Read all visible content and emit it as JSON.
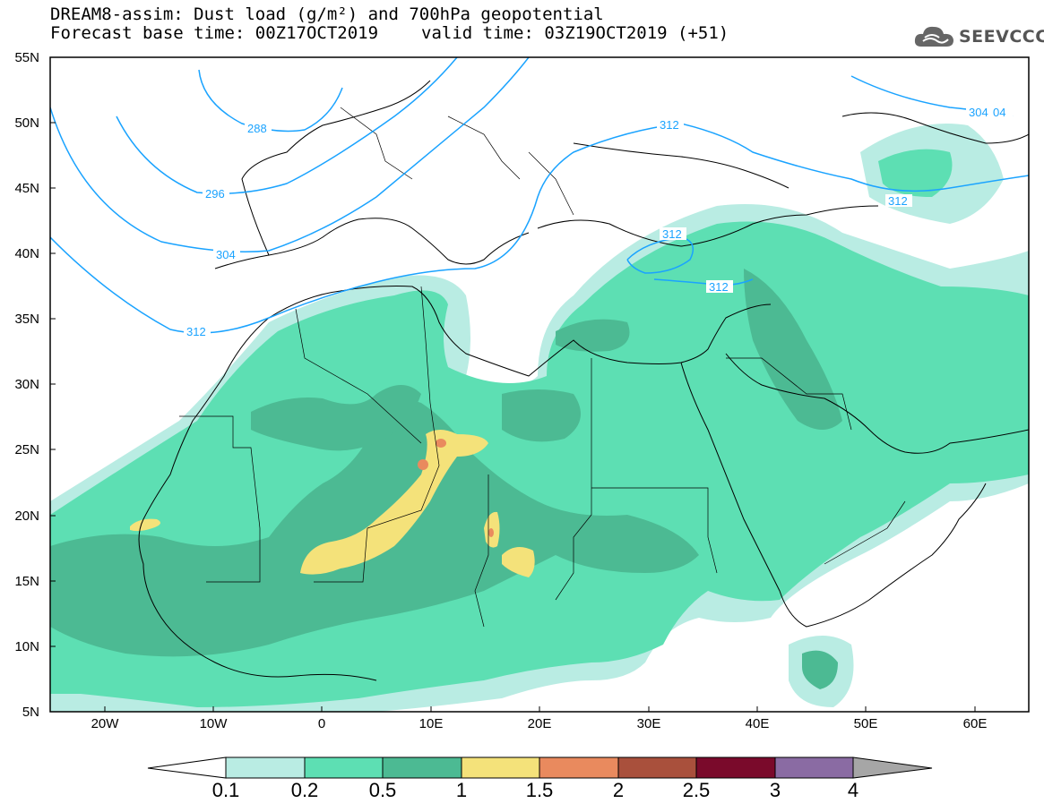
{
  "header": {
    "line1": "DREAM8-assim: Dust load (g/m²) and 700hPa geopotential",
    "base_time": "Forecast base time: 00Z17OCT2019",
    "valid_time": "valid time: 03Z19OCT2019 (+51)"
  },
  "logo": {
    "text": "SEEVCCC",
    "icon": "cloud-logo-icon"
  },
  "map": {
    "lat_labels": [
      "55N",
      "50N",
      "45N",
      "40N",
      "35N",
      "30N",
      "25N",
      "20N",
      "15N",
      "10N",
      "5N"
    ],
    "lon_labels": [
      "20W",
      "10W",
      "0",
      "10E",
      "20E",
      "30E",
      "40E",
      "50E",
      "60E"
    ],
    "contour_labels": [
      "288",
      "296",
      "304",
      "312",
      "312",
      "312",
      "312",
      "304",
      "04"
    ]
  },
  "colorbar": {
    "labels": [
      "0.1",
      "0.2",
      "0.5",
      "1",
      "1.5",
      "2",
      "2.5",
      "3",
      "4"
    ],
    "colors": [
      "#ffffff",
      "#b9ece3",
      "#5ddfb3",
      "#4cba93",
      "#f4e27a",
      "#e98a5e",
      "#a9503c",
      "#7a0a2b",
      "#8a6ba3",
      "#a6a6a6"
    ]
  },
  "colors": {
    "contour": "#1aa3ff",
    "dust_01": "#b9ece3",
    "dust_02": "#5ddfb3",
    "dust_05": "#4cba93",
    "dust_1": "#f4e27a",
    "dust_15": "#e98a5e",
    "dust_2": "#a9503c"
  }
}
